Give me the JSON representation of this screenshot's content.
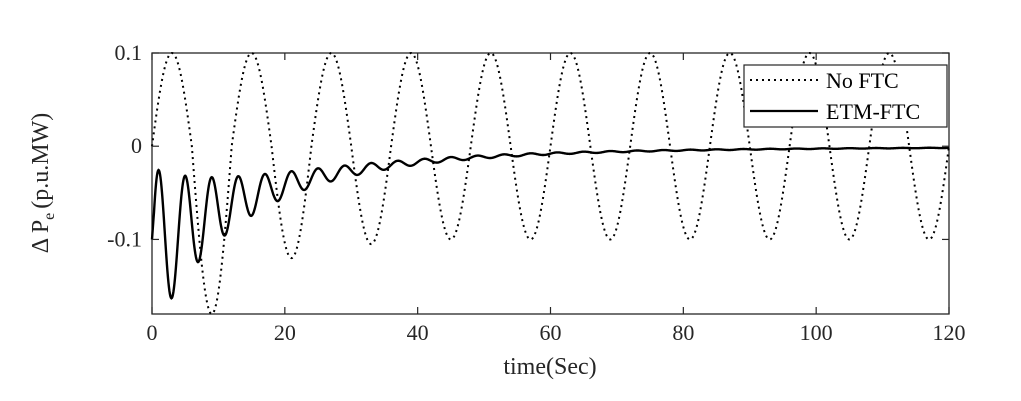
{
  "chart_data": {
    "type": "line",
    "xlabel": "time(Sec)",
    "ylabel": {
      "main": "Δ P",
      "sub": "e",
      "unit": "(p.u.MW)"
    },
    "xlim": [
      0,
      120
    ],
    "ylim": [
      -0.18,
      0.1
    ],
    "x_ticks": [
      0,
      20,
      40,
      60,
      80,
      100,
      120
    ],
    "x_tick_labels": [
      "0",
      "20",
      "40",
      "60",
      "80",
      "100",
      "120"
    ],
    "y_ticks": [
      -0.1,
      0,
      0.1
    ],
    "y_tick_labels": [
      "-0.1",
      "0",
      "0.1"
    ],
    "grid": false,
    "legend_position": "top-right",
    "series": [
      {
        "name": "No FTC",
        "style": "dotted",
        "color": "#000000",
        "model": "A*cos(w*(t-1))*damped_growth_then_sustained",
        "period": 12,
        "x": [
          0,
          3,
          9,
          15,
          21,
          27,
          33,
          39,
          45,
          51,
          57,
          63,
          69,
          75,
          81,
          87,
          93,
          99,
          105,
          111,
          117,
          120
        ],
        "y": [
          0.0,
          0.1,
          -0.18,
          0.1,
          -0.12,
          0.1,
          -0.105,
          0.1,
          -0.1,
          0.1,
          -0.1,
          0.1,
          -0.1,
          0.1,
          -0.1,
          0.1,
          -0.1,
          0.1,
          -0.1,
          0.1,
          -0.1,
          -0.02
        ]
      },
      {
        "name": "ETM-FTC",
        "style": "solid",
        "color": "#000000",
        "x": [
          0,
          1,
          3,
          5,
          7,
          9,
          11,
          13,
          15,
          17,
          19,
          21,
          23,
          25,
          30,
          35,
          40,
          50,
          60,
          80,
          100,
          120
        ],
        "y": [
          -0.1,
          -0.005,
          -0.162,
          -0.022,
          -0.122,
          -0.032,
          -0.092,
          -0.033,
          -0.072,
          -0.033,
          -0.058,
          -0.031,
          -0.048,
          -0.035,
          -0.028,
          -0.022,
          -0.017,
          -0.011,
          -0.007,
          -0.004,
          -0.002,
          -0.001
        ]
      }
    ]
  }
}
